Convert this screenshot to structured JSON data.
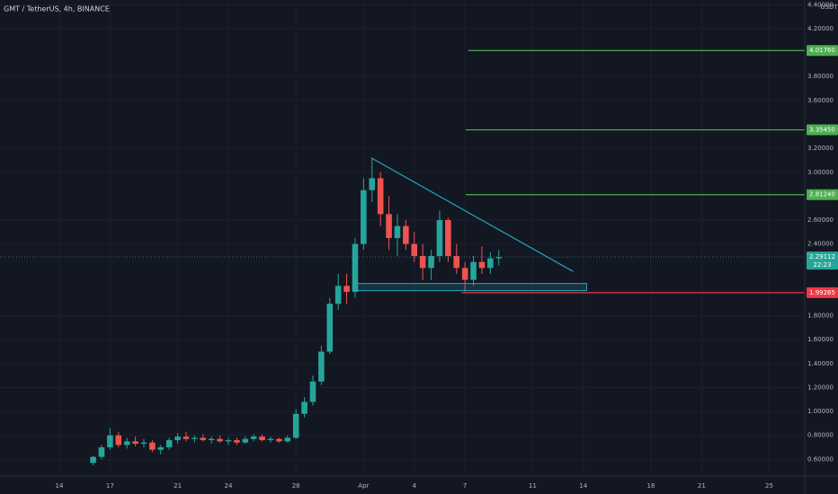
{
  "chart_data": {
    "type": "candlestick",
    "title": "GMT / TetherUS, 4h, BINANCE",
    "currency": "USDT",
    "up_color": "#26a69a",
    "down_color": "#ef5350",
    "x": [
      16,
      16.5,
      17,
      17.5,
      18,
      18.5,
      19,
      19.5,
      20,
      20.5,
      21,
      21.5,
      22,
      22.5,
      23,
      23.5,
      24,
      24.5,
      25,
      25.5,
      26,
      26.5,
      27,
      27.5,
      28,
      28.5,
      29,
      29.5,
      30,
      30.5,
      31,
      31.5,
      32,
      32.5,
      33,
      33.5,
      34,
      34.5,
      35,
      35.5,
      36,
      36.5,
      37,
      37.5,
      38,
      38.5,
      39,
      39.5,
      40
    ],
    "open": [
      0.57,
      0.62,
      0.7,
      0.8,
      0.72,
      0.75,
      0.73,
      0.74,
      0.68,
      0.7,
      0.76,
      0.79,
      0.77,
      0.78,
      0.76,
      0.77,
      0.75,
      0.76,
      0.74,
      0.77,
      0.79,
      0.76,
      0.77,
      0.75,
      0.78,
      0.98,
      1.08,
      1.25,
      1.5,
      1.9,
      2.05,
      2.0,
      2.4,
      2.85,
      2.95,
      2.65,
      2.45,
      2.55,
      2.4,
      2.3,
      2.2,
      2.3,
      2.6,
      2.3,
      2.2,
      2.1,
      2.25,
      2.2,
      2.28
    ],
    "high": [
      0.63,
      0.72,
      0.86,
      0.83,
      0.78,
      0.79,
      0.77,
      0.76,
      0.72,
      0.78,
      0.82,
      0.83,
      0.8,
      0.81,
      0.79,
      0.8,
      0.78,
      0.78,
      0.79,
      0.81,
      0.81,
      0.79,
      0.78,
      0.8,
      1.02,
      1.12,
      1.3,
      1.55,
      1.95,
      2.15,
      2.15,
      2.45,
      2.95,
      3.12,
      3.0,
      2.8,
      2.65,
      2.6,
      2.5,
      2.4,
      2.35,
      2.68,
      2.62,
      2.4,
      2.25,
      2.3,
      2.38,
      2.33,
      2.35
    ],
    "low": [
      0.55,
      0.6,
      0.68,
      0.7,
      0.69,
      0.71,
      0.7,
      0.66,
      0.64,
      0.68,
      0.73,
      0.75,
      0.74,
      0.75,
      0.73,
      0.74,
      0.72,
      0.72,
      0.73,
      0.75,
      0.75,
      0.74,
      0.74,
      0.74,
      0.77,
      0.95,
      1.05,
      1.22,
      1.48,
      1.85,
      1.9,
      1.95,
      2.35,
      2.75,
      2.55,
      2.35,
      2.3,
      2.35,
      2.25,
      2.1,
      2.1,
      2.25,
      2.25,
      2.15,
      2.0,
      2.05,
      2.15,
      2.15,
      2.22
    ],
    "close": [
      0.62,
      0.7,
      0.8,
      0.72,
      0.75,
      0.73,
      0.74,
      0.68,
      0.7,
      0.76,
      0.79,
      0.77,
      0.78,
      0.76,
      0.77,
      0.75,
      0.76,
      0.74,
      0.77,
      0.79,
      0.76,
      0.77,
      0.75,
      0.78,
      0.98,
      1.08,
      1.25,
      1.5,
      1.9,
      2.05,
      2.0,
      2.4,
      2.85,
      2.95,
      2.65,
      2.45,
      2.55,
      2.4,
      2.3,
      2.2,
      2.3,
      2.6,
      2.3,
      2.2,
      2.1,
      2.25,
      2.2,
      2.28,
      2.29
    ],
    "xlim": [
      10.49,
      58.1
    ],
    "ylim": [
      0.46,
      4.44
    ],
    "xticks": [
      14,
      17,
      21,
      24,
      28,
      {
        "value": 32,
        "label": "Apr"
      },
      {
        "value": 35,
        "label": "4"
      },
      {
        "value": 38,
        "label": "7"
      },
      {
        "value": 42,
        "label": "11"
      },
      {
        "value": 45,
        "label": "14"
      },
      {
        "value": 49,
        "label": "18"
      },
      {
        "value": 52,
        "label": "21"
      },
      {
        "value": 56,
        "label": "25"
      }
    ],
    "yticks": [
      {
        "value": 0.6,
        "label": "0.60000"
      },
      {
        "value": 0.8,
        "label": "0.80000"
      },
      {
        "value": 1.0,
        "label": "1.00000"
      },
      {
        "value": 1.2,
        "label": "1.20000"
      },
      {
        "value": 1.4,
        "label": "1.40000"
      },
      {
        "value": 1.6,
        "label": "1.60000"
      },
      {
        "value": 1.8,
        "label": "1.80000"
      },
      {
        "value": 2.4,
        "label": "2.40000"
      },
      {
        "value": 2.6,
        "label": "2.60000"
      },
      {
        "value": 3.0,
        "label": "3.00000"
      },
      {
        "value": 3.2,
        "label": "3.20000"
      },
      {
        "value": 3.6,
        "label": "3.60000"
      },
      {
        "value": 3.8,
        "label": "3.80000"
      },
      {
        "value": 4.2,
        "label": "4.20000"
      },
      {
        "value": 4.4,
        "label": "4.40000"
      }
    ],
    "levels": [
      {
        "value": 4.0176,
        "label": "4.01760",
        "color": "#4caf50",
        "start": 38.2
      },
      {
        "value": 3.3545,
        "label": "3.35450",
        "color": "#4caf50",
        "start": 38.05
      },
      {
        "value": 2.8124,
        "label": "2.81240",
        "color": "#4caf50",
        "start": 38.05
      },
      {
        "value": 1.99265,
        "label": "1.99265",
        "color": "#f23645",
        "start": 37.8
      }
    ],
    "current_price": {
      "value": 2.29112,
      "label": "2.29112",
      "countdown": "22:23",
      "color": "#26a69a"
    },
    "trendline": {
      "x": [
        32.45,
        44.4
      ],
      "y": [
        3.12,
        2.17
      ],
      "color": "#22a8b8"
    },
    "zone": {
      "x": [
        31.4,
        45.2
      ],
      "y": [
        2.01,
        2.07
      ],
      "color": "#22a8b8"
    }
  }
}
